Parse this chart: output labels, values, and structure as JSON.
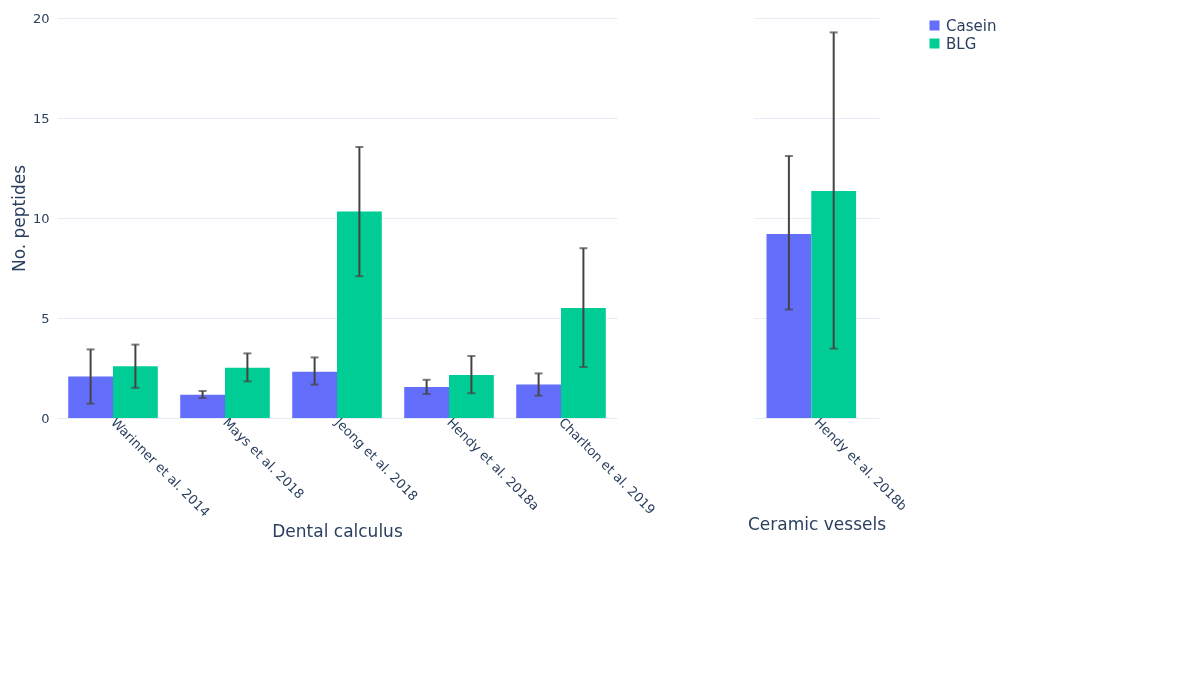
{
  "chart_data": [
    {
      "type": "bar",
      "xlabel": "Dental calculus",
      "ylabel": "No. peptides",
      "categories": [
        "Warinner et al. 2014",
        "Mays et al. 2018",
        "Jeong et al. 2018",
        "Hendy et al. 2018a",
        "Charlton et al. 2019"
      ],
      "ylim": [
        0,
        20
      ],
      "yticks": [
        0,
        5,
        10,
        15,
        20
      ],
      "grid": "y",
      "legend": "top right",
      "series": [
        {
          "name": "Casein",
          "color": "#636efa",
          "values": [
            2.07,
            1.16,
            2.31,
            1.55,
            1.67
          ],
          "errors": [
            [
              0.72,
              3.43
            ],
            [
              1.0,
              1.35
            ],
            [
              1.67,
              3.03
            ],
            [
              1.2,
              1.91
            ],
            [
              1.12,
              2.23
            ]
          ]
        },
        {
          "name": "BLG",
          "color": "#00cc96",
          "values": [
            2.59,
            2.51,
            10.32,
            2.15,
            5.5
          ],
          "errors": [
            [
              1.51,
              3.67
            ],
            [
              1.83,
              3.23
            ],
            [
              7.09,
              13.55
            ],
            [
              1.24,
              3.1
            ],
            [
              2.55,
              8.49
            ]
          ]
        }
      ]
    },
    {
      "type": "bar",
      "xlabel": "Ceramic vessels",
      "categories": [
        "Hendy et al. 2018b"
      ],
      "ylim": [
        0,
        20
      ],
      "yticks": [
        0,
        5,
        10,
        15,
        20
      ],
      "grid": "y",
      "legend": "top right",
      "tick_labels": "x",
      "series": [
        {
          "name": "Casein",
          "color": "#636efa",
          "values": [
            9.2
          ],
          "errors": [
            [
              5.42,
              13.1
            ]
          ]
        },
        {
          "name": "BLG",
          "color": "#00cc96",
          "values": [
            11.35
          ],
          "errors": [
            [
              3.47,
              19.28
            ]
          ]
        }
      ]
    }
  ]
}
